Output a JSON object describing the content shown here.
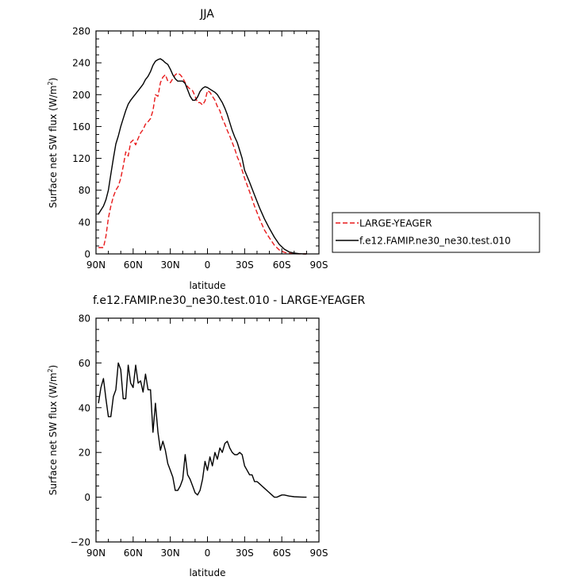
{
  "chart_data": [
    {
      "type": "line",
      "title": "JJA",
      "xlabel": "latitude",
      "ylabel": "Surface net SW flux (W/m",
      "ylabel_sup": "2",
      "ylabel_close": ")",
      "x_ticks": [
        {
          "value": 90,
          "label": "90N"
        },
        {
          "value": 60,
          "label": "60N"
        },
        {
          "value": 30,
          "label": "30N"
        },
        {
          "value": 0,
          "label": "0"
        },
        {
          "value": -30,
          "label": "30S"
        },
        {
          "value": -60,
          "label": "60S"
        },
        {
          "value": -90,
          "label": "90S"
        }
      ],
      "y_ticks": [
        0,
        40,
        80,
        120,
        160,
        200,
        240,
        280
      ],
      "xlim": [
        90,
        -90
      ],
      "ylim": [
        0,
        280
      ],
      "legend_position": "right",
      "series": [
        {
          "name": "LARGE-YEAGER",
          "color": "#e8191a",
          "dash": "dashed",
          "x": [
            88,
            84,
            82,
            80,
            78,
            76,
            74,
            72,
            70,
            68,
            66,
            64,
            62,
            60,
            58,
            56,
            54,
            52,
            50,
            48,
            46,
            44,
            42,
            40,
            38,
            36,
            34,
            32,
            30,
            28,
            26,
            24,
            22,
            20,
            18,
            16,
            14,
            12,
            10,
            8,
            6,
            4,
            2,
            0,
            -2,
            -4,
            -6,
            -8,
            -10,
            -12,
            -14,
            -16,
            -18,
            -20,
            -22,
            -24,
            -26,
            -28,
            -30,
            -34,
            -38,
            -42,
            -46,
            -50,
            -54,
            -58,
            -62,
            -66,
            -70,
            -74,
            -78,
            -80
          ],
          "y": [
            8,
            8,
            22,
            45,
            60,
            72,
            80,
            85,
            95,
            110,
            128,
            123,
            140,
            143,
            137,
            145,
            152,
            156,
            163,
            166,
            170,
            180,
            200,
            198,
            215,
            222,
            225,
            217,
            215,
            220,
            225,
            227,
            225,
            221,
            215,
            210,
            207,
            205,
            198,
            190,
            190,
            187,
            192,
            205,
            203,
            198,
            193,
            185,
            180,
            170,
            163,
            155,
            148,
            140,
            132,
            122,
            115,
            105,
            95,
            78,
            60,
            44,
            30,
            20,
            11,
            5,
            2,
            0.8,
            0.3,
            0.1,
            0,
            0
          ]
        },
        {
          "name": "f.e12.FAMIP.ne30_ne30.test.010",
          "color": "#000000",
          "dash": "solid",
          "x": [
            88,
            86,
            84,
            82,
            80,
            78,
            76,
            74,
            72,
            70,
            68,
            66,
            64,
            62,
            60,
            58,
            56,
            54,
            52,
            50,
            48,
            46,
            44,
            42,
            40,
            38,
            36,
            34,
            32,
            30,
            28,
            26,
            24,
            22,
            20,
            18,
            16,
            14,
            12,
            10,
            8,
            6,
            4,
            2,
            0,
            -2,
            -4,
            -6,
            -8,
            -10,
            -12,
            -14,
            -16,
            -18,
            -20,
            -22,
            -24,
            -26,
            -28,
            -30,
            -34,
            -38,
            -42,
            -46,
            -50,
            -54,
            -58,
            -62,
            -66,
            -70,
            -74,
            -78,
            -80
          ],
          "y": [
            50,
            55,
            60,
            68,
            80,
            100,
            120,
            138,
            148,
            160,
            170,
            180,
            188,
            193,
            197,
            201,
            205,
            209,
            213,
            219,
            223,
            229,
            237,
            242,
            244,
            245,
            243,
            240,
            238,
            232,
            225,
            220,
            217,
            217,
            217,
            214,
            206,
            198,
            193,
            193,
            197,
            204,
            208,
            210,
            209,
            207,
            205,
            203,
            200,
            195,
            190,
            183,
            175,
            165,
            155,
            147,
            140,
            130,
            120,
            105,
            90,
            74,
            58,
            44,
            32,
            21,
            12,
            6,
            2.5,
            1,
            0.3,
            0,
            0
          ]
        }
      ]
    },
    {
      "type": "line",
      "title": "f.e12.FAMIP.ne30_ne30.test.010 - LARGE-YEAGER",
      "xlabel": "latitude",
      "ylabel": "Surface net SW flux (W/m",
      "ylabel_sup": "2",
      "ylabel_close": ")",
      "x_ticks": [
        {
          "value": 90,
          "label": "90N"
        },
        {
          "value": 60,
          "label": "60N"
        },
        {
          "value": 30,
          "label": "30N"
        },
        {
          "value": 0,
          "label": "0"
        },
        {
          "value": -30,
          "label": "30S"
        },
        {
          "value": -60,
          "label": "60S"
        },
        {
          "value": -90,
          "label": "90S"
        }
      ],
      "y_ticks": [
        -20,
        0,
        20,
        40,
        60,
        80
      ],
      "xlim": [
        90,
        -90
      ],
      "ylim": [
        -20,
        80
      ],
      "series": [
        {
          "color": "#000000",
          "dash": "solid",
          "x": [
            88,
            86,
            84,
            82,
            80,
            78,
            76,
            74,
            72,
            70,
            68,
            66,
            64,
            62,
            60,
            58,
            56,
            54,
            52,
            50,
            48,
            46,
            44,
            42,
            40,
            38,
            36,
            34,
            32,
            30,
            28,
            26,
            24,
            22,
            20,
            18,
            16,
            14,
            12,
            10,
            8,
            6,
            4,
            2,
            0,
            -2,
            -4,
            -6,
            -8,
            -10,
            -12,
            -14,
            -16,
            -18,
            -20,
            -22,
            -24,
            -26,
            -28,
            -30,
            -32,
            -34,
            -36,
            -38,
            -40,
            -42,
            -44,
            -46,
            -48,
            -50,
            -52,
            -54,
            -56,
            -58,
            -60,
            -62,
            -66,
            -70,
            -74,
            -78,
            -80
          ],
          "y": [
            42,
            49,
            53,
            44,
            36,
            36,
            45,
            48,
            60,
            57,
            44,
            44,
            59,
            51,
            49,
            59,
            51,
            52,
            47,
            55,
            48,
            48,
            29,
            42,
            29,
            21,
            25,
            21,
            15,
            12,
            9,
            3,
            3,
            5,
            8,
            19,
            10,
            8,
            5,
            2,
            1,
            3,
            8,
            16,
            12,
            18,
            14,
            20,
            17,
            22,
            20,
            24,
            25,
            22,
            20,
            19,
            19,
            20,
            19,
            14,
            12,
            10,
            10,
            7,
            7,
            6,
            5,
            4,
            3,
            2,
            1,
            0,
            0,
            0.5,
            1,
            1,
            0.5,
            0.2,
            0.1,
            0,
            0
          ]
        }
      ]
    }
  ]
}
